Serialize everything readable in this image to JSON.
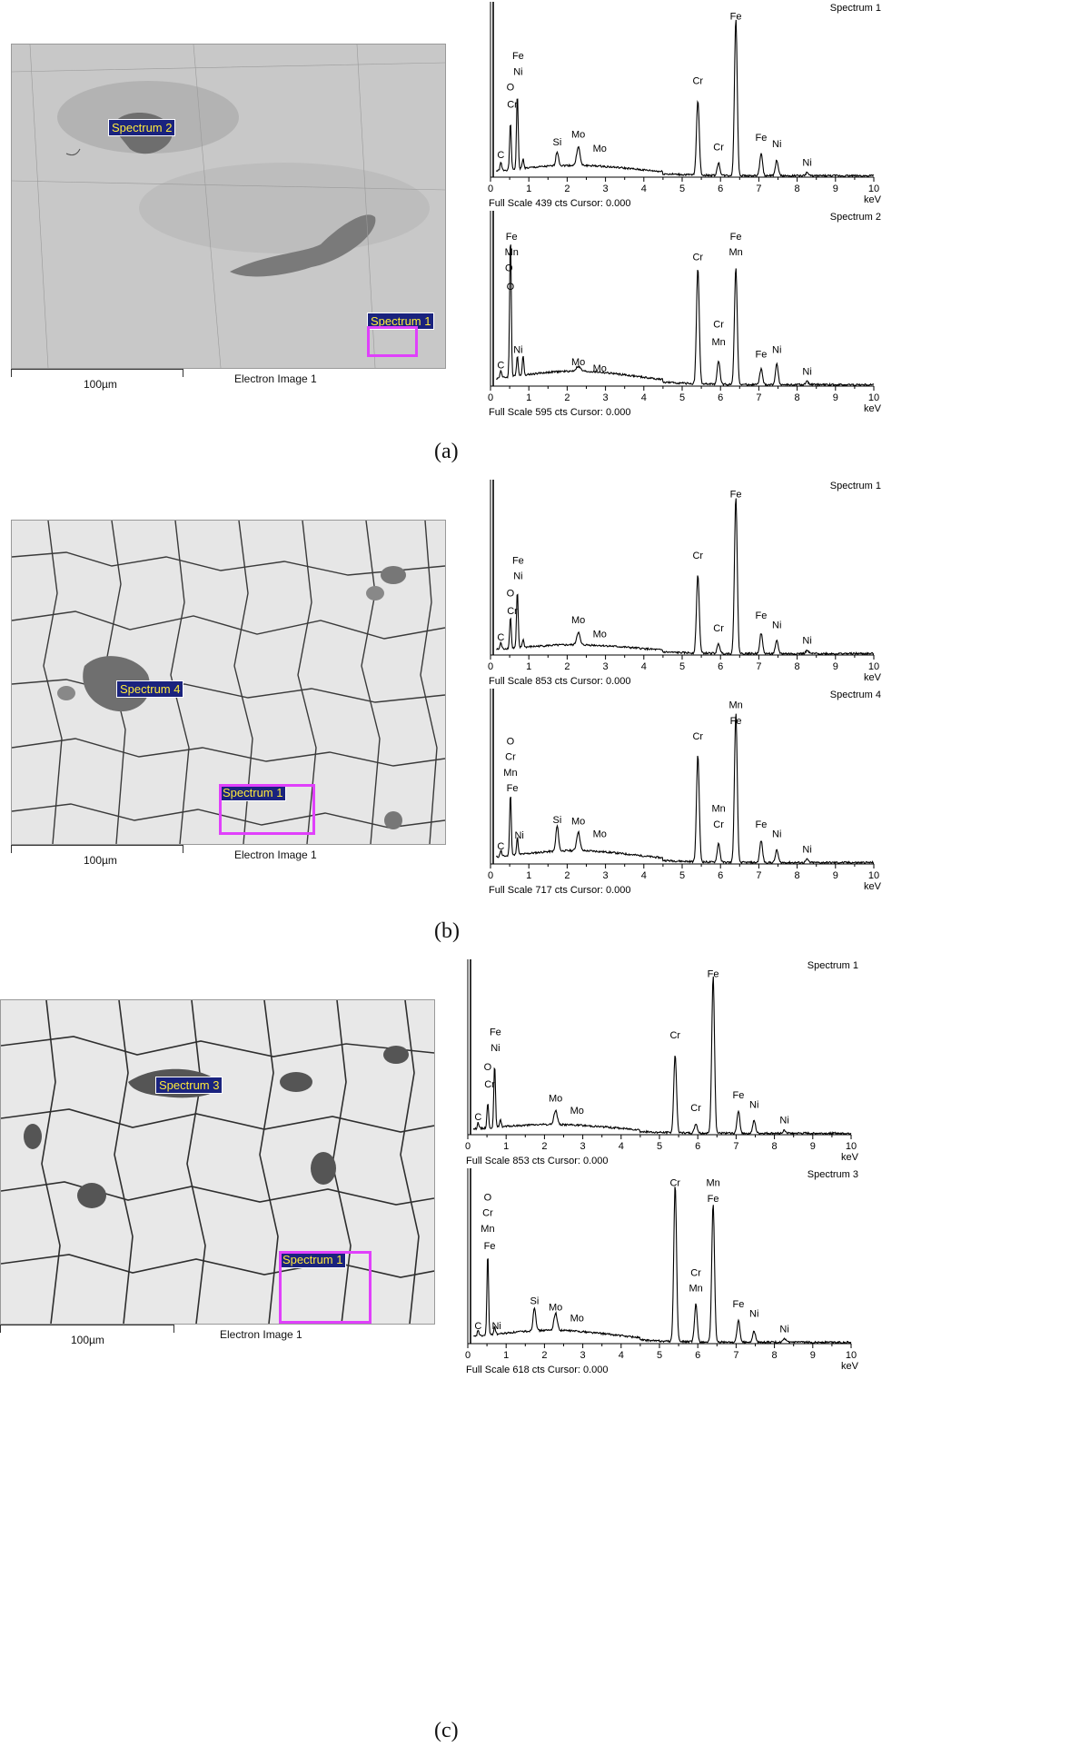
{
  "panels": [
    {
      "caption": "(a)",
      "scale_label": "100µm",
      "image_label": "Electron Image 1",
      "tags": [
        "Spectrum 2",
        "Spectrum 1"
      ],
      "spectra": [
        {
          "title": "Spectrum 1",
          "status": "Full Scale 439 cts Cursor: 0.000",
          "unit": "keV",
          "peaks": [
            {
              "e": 0.27,
              "h": 0.05,
              "w": 0.03
            },
            {
              "e": 0.52,
              "h": 0.3,
              "w": 0.03
            },
            {
              "e": 0.7,
              "h": 0.48,
              "w": 0.03
            },
            {
              "e": 0.85,
              "h": 0.06,
              "w": 0.03
            },
            {
              "e": 1.74,
              "h": 0.09,
              "w": 0.05
            },
            {
              "e": 2.29,
              "h": 0.12,
              "w": 0.06
            },
            {
              "e": 5.41,
              "h": 0.48,
              "w": 0.05
            },
            {
              "e": 5.95,
              "h": 0.08,
              "w": 0.05
            },
            {
              "e": 6.4,
              "h": 1.0,
              "w": 0.05
            },
            {
              "e": 7.06,
              "h": 0.14,
              "w": 0.05
            },
            {
              "e": 7.47,
              "h": 0.1,
              "w": 0.05
            },
            {
              "e": 8.26,
              "h": 0.02,
              "w": 0.05
            }
          ],
          "labels": [
            {
              "t": "Fe",
              "e": 0.72,
              "h": 0.74
            },
            {
              "t": "Ni",
              "e": 0.72,
              "h": 0.64
            },
            {
              "t": "O",
              "e": 0.52,
              "h": 0.54
            },
            {
              "t": "Cr",
              "e": 0.57,
              "h": 0.43
            },
            {
              "t": "C",
              "e": 0.27,
              "h": 0.11
            },
            {
              "t": "Si",
              "e": 1.74,
              "h": 0.19
            },
            {
              "t": "Mo",
              "e": 2.29,
              "h": 0.24
            },
            {
              "t": "Mo",
              "e": 2.85,
              "h": 0.15
            },
            {
              "t": "Cr",
              "e": 5.41,
              "h": 0.58
            },
            {
              "t": "Cr",
              "e": 5.95,
              "h": 0.16
            },
            {
              "t": "Fe",
              "e": 6.4,
              "h": 0.99
            },
            {
              "t": "Fe",
              "e": 7.06,
              "h": 0.22
            },
            {
              "t": "Ni",
              "e": 7.47,
              "h": 0.18
            },
            {
              "t": "Ni",
              "e": 8.26,
              "h": 0.06
            }
          ],
          "bg": 0.06
        },
        {
          "title": "Spectrum 2",
          "status": "Full Scale 595 cts Cursor: 0.000",
          "unit": "keV",
          "peaks": [
            {
              "e": 0.27,
              "h": 0.05,
              "w": 0.03
            },
            {
              "e": 0.52,
              "h": 0.9,
              "w": 0.03
            },
            {
              "e": 0.7,
              "h": 0.13,
              "w": 0.03
            },
            {
              "e": 0.85,
              "h": 0.12,
              "w": 0.03
            },
            {
              "e": 2.29,
              "h": 0.03,
              "w": 0.08
            },
            {
              "e": 5.41,
              "h": 0.74,
              "w": 0.05
            },
            {
              "e": 5.95,
              "h": 0.15,
              "w": 0.05
            },
            {
              "e": 6.4,
              "h": 0.75,
              "w": 0.05
            },
            {
              "e": 7.06,
              "h": 0.1,
              "w": 0.05
            },
            {
              "e": 7.47,
              "h": 0.13,
              "w": 0.05
            },
            {
              "e": 8.26,
              "h": 0.02,
              "w": 0.05
            }
          ],
          "labels": [
            {
              "t": "Fe",
              "e": 0.55,
              "h": 0.92
            },
            {
              "t": "Mn",
              "e": 0.55,
              "h": 0.82
            },
            {
              "t": "O",
              "e": 0.48,
              "h": 0.72
            },
            {
              "t": "O",
              "e": 0.52,
              "h": 0.6
            },
            {
              "t": "Ni",
              "e": 0.72,
              "h": 0.2
            },
            {
              "t": "C",
              "e": 0.27,
              "h": 0.1
            },
            {
              "t": "Mo",
              "e": 2.29,
              "h": 0.12
            },
            {
              "t": "Mo",
              "e": 2.85,
              "h": 0.08
            },
            {
              "t": "Cr",
              "e": 5.41,
              "h": 0.79
            },
            {
              "t": "Cr",
              "e": 5.95,
              "h": 0.36
            },
            {
              "t": "Mn",
              "e": 5.95,
              "h": 0.25
            },
            {
              "t": "Fe",
              "e": 6.4,
              "h": 0.92
            },
            {
              "t": "Mn",
              "e": 6.4,
              "h": 0.82
            },
            {
              "t": "Fe",
              "e": 7.06,
              "h": 0.17
            },
            {
              "t": "Ni",
              "e": 7.47,
              "h": 0.2
            },
            {
              "t": "Ni",
              "e": 8.26,
              "h": 0.06
            }
          ],
          "bg": 0.08
        }
      ]
    },
    {
      "caption": "(b)",
      "scale_label": "100µm",
      "image_label": "Electron Image 1",
      "tags": [
        "Spectrum 4",
        "Spectrum 1"
      ],
      "spectra": [
        {
          "title": "Spectrum 1",
          "status": "Full Scale 853 cts Cursor: 0.000",
          "unit": "keV",
          "peaks": [
            {
              "e": 0.27,
              "h": 0.04,
              "w": 0.03
            },
            {
              "e": 0.52,
              "h": 0.2,
              "w": 0.03
            },
            {
              "e": 0.7,
              "h": 0.36,
              "w": 0.03
            },
            {
              "e": 0.85,
              "h": 0.05,
              "w": 0.03
            },
            {
              "e": 2.29,
              "h": 0.08,
              "w": 0.06
            },
            {
              "e": 5.41,
              "h": 0.5,
              "w": 0.05
            },
            {
              "e": 5.95,
              "h": 0.06,
              "w": 0.05
            },
            {
              "e": 6.4,
              "h": 1.0,
              "w": 0.05
            },
            {
              "e": 7.06,
              "h": 0.13,
              "w": 0.05
            },
            {
              "e": 7.47,
              "h": 0.08,
              "w": 0.05
            },
            {
              "e": 8.26,
              "h": 0.02,
              "w": 0.05
            }
          ],
          "labels": [
            {
              "t": "Fe",
              "e": 0.72,
              "h": 0.57
            },
            {
              "t": "Ni",
              "e": 0.72,
              "h": 0.47
            },
            {
              "t": "O",
              "e": 0.52,
              "h": 0.36
            },
            {
              "t": "Cr",
              "e": 0.57,
              "h": 0.25
            },
            {
              "t": "C",
              "e": 0.27,
              "h": 0.08
            },
            {
              "t": "Mo",
              "e": 2.29,
              "h": 0.19
            },
            {
              "t": "Mo",
              "e": 2.85,
              "h": 0.1
            },
            {
              "t": "Cr",
              "e": 5.41,
              "h": 0.6
            },
            {
              "t": "Cr",
              "e": 5.95,
              "h": 0.14
            },
            {
              "t": "Fe",
              "e": 6.4,
              "h": 0.99
            },
            {
              "t": "Fe",
              "e": 7.06,
              "h": 0.22
            },
            {
              "t": "Ni",
              "e": 7.47,
              "h": 0.16
            },
            {
              "t": "Ni",
              "e": 8.26,
              "h": 0.06
            }
          ],
          "bg": 0.05
        },
        {
          "title": "Spectrum 4",
          "status": "Full Scale 717 cts Cursor: 0.000",
          "unit": "keV",
          "peaks": [
            {
              "e": 0.27,
              "h": 0.04,
              "w": 0.03
            },
            {
              "e": 0.52,
              "h": 0.4,
              "w": 0.03
            },
            {
              "e": 0.7,
              "h": 0.11,
              "w": 0.03
            },
            {
              "e": 1.74,
              "h": 0.16,
              "w": 0.05
            },
            {
              "e": 2.29,
              "h": 0.12,
              "w": 0.06
            },
            {
              "e": 5.41,
              "h": 0.68,
              "w": 0.05
            },
            {
              "e": 5.95,
              "h": 0.12,
              "w": 0.05
            },
            {
              "e": 6.4,
              "h": 0.95,
              "w": 0.05
            },
            {
              "e": 7.06,
              "h": 0.14,
              "w": 0.05
            },
            {
              "e": 7.47,
              "h": 0.08,
              "w": 0.05
            },
            {
              "e": 8.26,
              "h": 0.02,
              "w": 0.05
            }
          ],
          "labels": [
            {
              "t": "O",
              "e": 0.52,
              "h": 0.75
            },
            {
              "t": "Cr",
              "e": 0.52,
              "h": 0.65
            },
            {
              "t": "Mn",
              "e": 0.52,
              "h": 0.55
            },
            {
              "t": "Fe",
              "e": 0.57,
              "h": 0.45
            },
            {
              "t": "Ni",
              "e": 0.75,
              "h": 0.15
            },
            {
              "t": "C",
              "e": 0.27,
              "h": 0.08
            },
            {
              "t": "Si",
              "e": 1.74,
              "h": 0.25
            },
            {
              "t": "Mo",
              "e": 2.29,
              "h": 0.24
            },
            {
              "t": "Mo",
              "e": 2.85,
              "h": 0.16
            },
            {
              "t": "Cr",
              "e": 5.41,
              "h": 0.78
            },
            {
              "t": "Mn",
              "e": 5.95,
              "h": 0.32
            },
            {
              "t": "Cr",
              "e": 5.95,
              "h": 0.22
            },
            {
              "t": "Mn",
              "e": 6.4,
              "h": 0.98
            },
            {
              "t": "Fe",
              "e": 6.4,
              "h": 0.88
            },
            {
              "t": "Fe",
              "e": 7.06,
              "h": 0.22
            },
            {
              "t": "Ni",
              "e": 7.47,
              "h": 0.16
            },
            {
              "t": "Ni",
              "e": 8.26,
              "h": 0.06
            }
          ],
          "bg": 0.07
        }
      ]
    },
    {
      "caption": "(c)",
      "scale_label": "100µm",
      "image_label": "Electron Image 1",
      "tags": [
        "Spectrum 3",
        "Spectrum 1"
      ],
      "spectra": [
        {
          "title": "Spectrum 1",
          "status": "Full Scale 853 cts Cursor: 0.000",
          "unit": "keV",
          "peaks": [
            {
              "e": 0.27,
              "h": 0.04,
              "w": 0.03
            },
            {
              "e": 0.52,
              "h": 0.16,
              "w": 0.03
            },
            {
              "e": 0.7,
              "h": 0.4,
              "w": 0.03
            },
            {
              "e": 0.85,
              "h": 0.05,
              "w": 0.03
            },
            {
              "e": 2.29,
              "h": 0.09,
              "w": 0.06
            },
            {
              "e": 5.41,
              "h": 0.5,
              "w": 0.05
            },
            {
              "e": 5.95,
              "h": 0.06,
              "w": 0.05
            },
            {
              "e": 6.4,
              "h": 1.0,
              "w": 0.05
            },
            {
              "e": 7.06,
              "h": 0.14,
              "w": 0.05
            },
            {
              "e": 7.47,
              "h": 0.08,
              "w": 0.05
            },
            {
              "e": 8.26,
              "h": 0.02,
              "w": 0.05
            }
          ],
          "labels": [
            {
              "t": "Fe",
              "e": 0.72,
              "h": 0.62
            },
            {
              "t": "Ni",
              "e": 0.72,
              "h": 0.52
            },
            {
              "t": "O",
              "e": 0.52,
              "h": 0.4
            },
            {
              "t": "Cr",
              "e": 0.57,
              "h": 0.29
            },
            {
              "t": "C",
              "e": 0.27,
              "h": 0.08
            },
            {
              "t": "Mo",
              "e": 2.29,
              "h": 0.2
            },
            {
              "t": "Mo",
              "e": 2.85,
              "h": 0.12
            },
            {
              "t": "Cr",
              "e": 5.41,
              "h": 0.6
            },
            {
              "t": "Cr",
              "e": 5.95,
              "h": 0.14
            },
            {
              "t": "Fe",
              "e": 6.4,
              "h": 0.99
            },
            {
              "t": "Fe",
              "e": 7.06,
              "h": 0.22
            },
            {
              "t": "Ni",
              "e": 7.47,
              "h": 0.16
            },
            {
              "t": "Ni",
              "e": 8.26,
              "h": 0.06
            }
          ],
          "bg": 0.05
        },
        {
          "title": "Spectrum 3",
          "status": "Full Scale 618 cts Cursor: 0.000",
          "unit": "keV",
          "peaks": [
            {
              "e": 0.27,
              "h": 0.04,
              "w": 0.03
            },
            {
              "e": 0.52,
              "h": 0.52,
              "w": 0.03
            },
            {
              "e": 0.7,
              "h": 0.05,
              "w": 0.03
            },
            {
              "e": 1.74,
              "h": 0.15,
              "w": 0.05
            },
            {
              "e": 2.29,
              "h": 0.11,
              "w": 0.06
            },
            {
              "e": 5.41,
              "h": 1.0,
              "w": 0.05
            },
            {
              "e": 5.95,
              "h": 0.24,
              "w": 0.05
            },
            {
              "e": 6.4,
              "h": 0.88,
              "w": 0.05
            },
            {
              "e": 7.06,
              "h": 0.14,
              "w": 0.05
            },
            {
              "e": 7.47,
              "h": 0.07,
              "w": 0.05
            },
            {
              "e": 8.26,
              "h": 0.02,
              "w": 0.05
            }
          ],
          "labels": [
            {
              "t": "O",
              "e": 0.52,
              "h": 0.9
            },
            {
              "t": "Cr",
              "e": 0.52,
              "h": 0.8
            },
            {
              "t": "Mn",
              "e": 0.52,
              "h": 0.7
            },
            {
              "t": "Fe",
              "e": 0.57,
              "h": 0.59
            },
            {
              "t": "Ni",
              "e": 0.75,
              "h": 0.08
            },
            {
              "t": "C",
              "e": 0.27,
              "h": 0.08
            },
            {
              "t": "Si",
              "e": 1.74,
              "h": 0.24
            },
            {
              "t": "Mo",
              "e": 2.29,
              "h": 0.2
            },
            {
              "t": "Mo",
              "e": 2.85,
              "h": 0.13
            },
            {
              "t": "Cr",
              "e": 5.41,
              "h": 0.99
            },
            {
              "t": "Cr",
              "e": 5.95,
              "h": 0.42
            },
            {
              "t": "Mn",
              "e": 5.95,
              "h": 0.32
            },
            {
              "t": "Mn",
              "e": 6.4,
              "h": 0.99
            },
            {
              "t": "Fe",
              "e": 6.4,
              "h": 0.89
            },
            {
              "t": "Fe",
              "e": 7.06,
              "h": 0.22
            },
            {
              "t": "Ni",
              "e": 7.47,
              "h": 0.16
            },
            {
              "t": "Ni",
              "e": 8.26,
              "h": 0.06
            }
          ],
          "bg": 0.07
        }
      ]
    }
  ],
  "chart_data": [
    {
      "type": "line",
      "title": "Spectrum 1",
      "xlabel": "keV",
      "xlim": [
        0,
        10
      ]
    },
    {
      "type": "line",
      "title": "Spectrum 2",
      "xlabel": "keV",
      "xlim": [
        0,
        10
      ]
    },
    {
      "type": "line",
      "title": "Spectrum 1",
      "xlabel": "keV",
      "xlim": [
        0,
        10
      ]
    },
    {
      "type": "line",
      "title": "Spectrum 4",
      "xlabel": "keV",
      "xlim": [
        0,
        10
      ]
    },
    {
      "type": "line",
      "title": "Spectrum 1",
      "xlabel": "keV",
      "xlim": [
        0,
        10
      ]
    },
    {
      "type": "line",
      "title": "Spectrum 3",
      "xlabel": "keV",
      "xlim": [
        0,
        10
      ]
    }
  ],
  "axis_ticks": [
    "0",
    "1",
    "2",
    "3",
    "4",
    "5",
    "6",
    "7",
    "8",
    "9",
    "10"
  ]
}
